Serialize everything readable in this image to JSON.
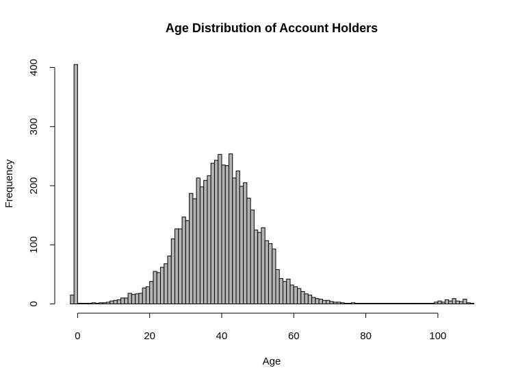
{
  "chart_data": {
    "type": "bar",
    "title": "Age Distribution of Account Holders",
    "xlabel": "Age",
    "ylabel": "Frequency",
    "xlim": [
      -2,
      110
    ],
    "ylim": [
      0,
      400
    ],
    "bin_width": 1,
    "bar_color": "#b3b3b3",
    "grid": false,
    "x_ticks": [
      0,
      20,
      40,
      60,
      80,
      100
    ],
    "y_ticks": [
      0,
      100,
      200,
      300,
      400
    ],
    "bin_starts": [
      -2,
      -1,
      0,
      1,
      2,
      3,
      4,
      5,
      6,
      7,
      8,
      9,
      10,
      11,
      12,
      13,
      14,
      15,
      16,
      17,
      18,
      19,
      20,
      21,
      22,
      23,
      24,
      25,
      26,
      27,
      28,
      29,
      30,
      31,
      32,
      33,
      34,
      35,
      36,
      37,
      38,
      39,
      40,
      41,
      42,
      43,
      44,
      45,
      46,
      47,
      48,
      49,
      50,
      51,
      52,
      53,
      54,
      55,
      56,
      57,
      58,
      59,
      60,
      61,
      62,
      63,
      64,
      65,
      66,
      67,
      68,
      69,
      70,
      71,
      72,
      73,
      74,
      75,
      76,
      77,
      78,
      79,
      80,
      81,
      82,
      83,
      84,
      85,
      86,
      87,
      88,
      89,
      90,
      91,
      92,
      93,
      94,
      95,
      96,
      97,
      98,
      99,
      100,
      101,
      102,
      103,
      104,
      105,
      106,
      107,
      108,
      109
    ],
    "values": [
      15,
      405,
      1,
      1,
      1,
      1,
      2,
      1,
      2,
      2,
      3,
      5,
      6,
      7,
      10,
      10,
      18,
      16,
      17,
      18,
      27,
      29,
      38,
      55,
      53,
      62,
      68,
      81,
      110,
      127,
      127,
      147,
      141,
      187,
      178,
      213,
      198,
      209,
      217,
      238,
      243,
      253,
      235,
      234,
      254,
      213,
      225,
      199,
      205,
      179,
      159,
      125,
      121,
      129,
      107,
      102,
      93,
      58,
      43,
      38,
      42,
      32,
      29,
      26,
      21,
      17,
      15,
      11,
      9,
      8,
      6,
      6,
      4,
      3,
      3,
      2,
      1,
      1,
      2,
      1,
      1,
      1,
      1,
      1,
      1,
      1,
      1,
      1,
      1,
      1,
      1,
      1,
      1,
      1,
      1,
      1,
      1,
      1,
      1,
      1,
      1,
      3,
      5,
      3,
      7,
      5,
      9,
      5,
      4,
      8,
      2,
      1
    ]
  }
}
